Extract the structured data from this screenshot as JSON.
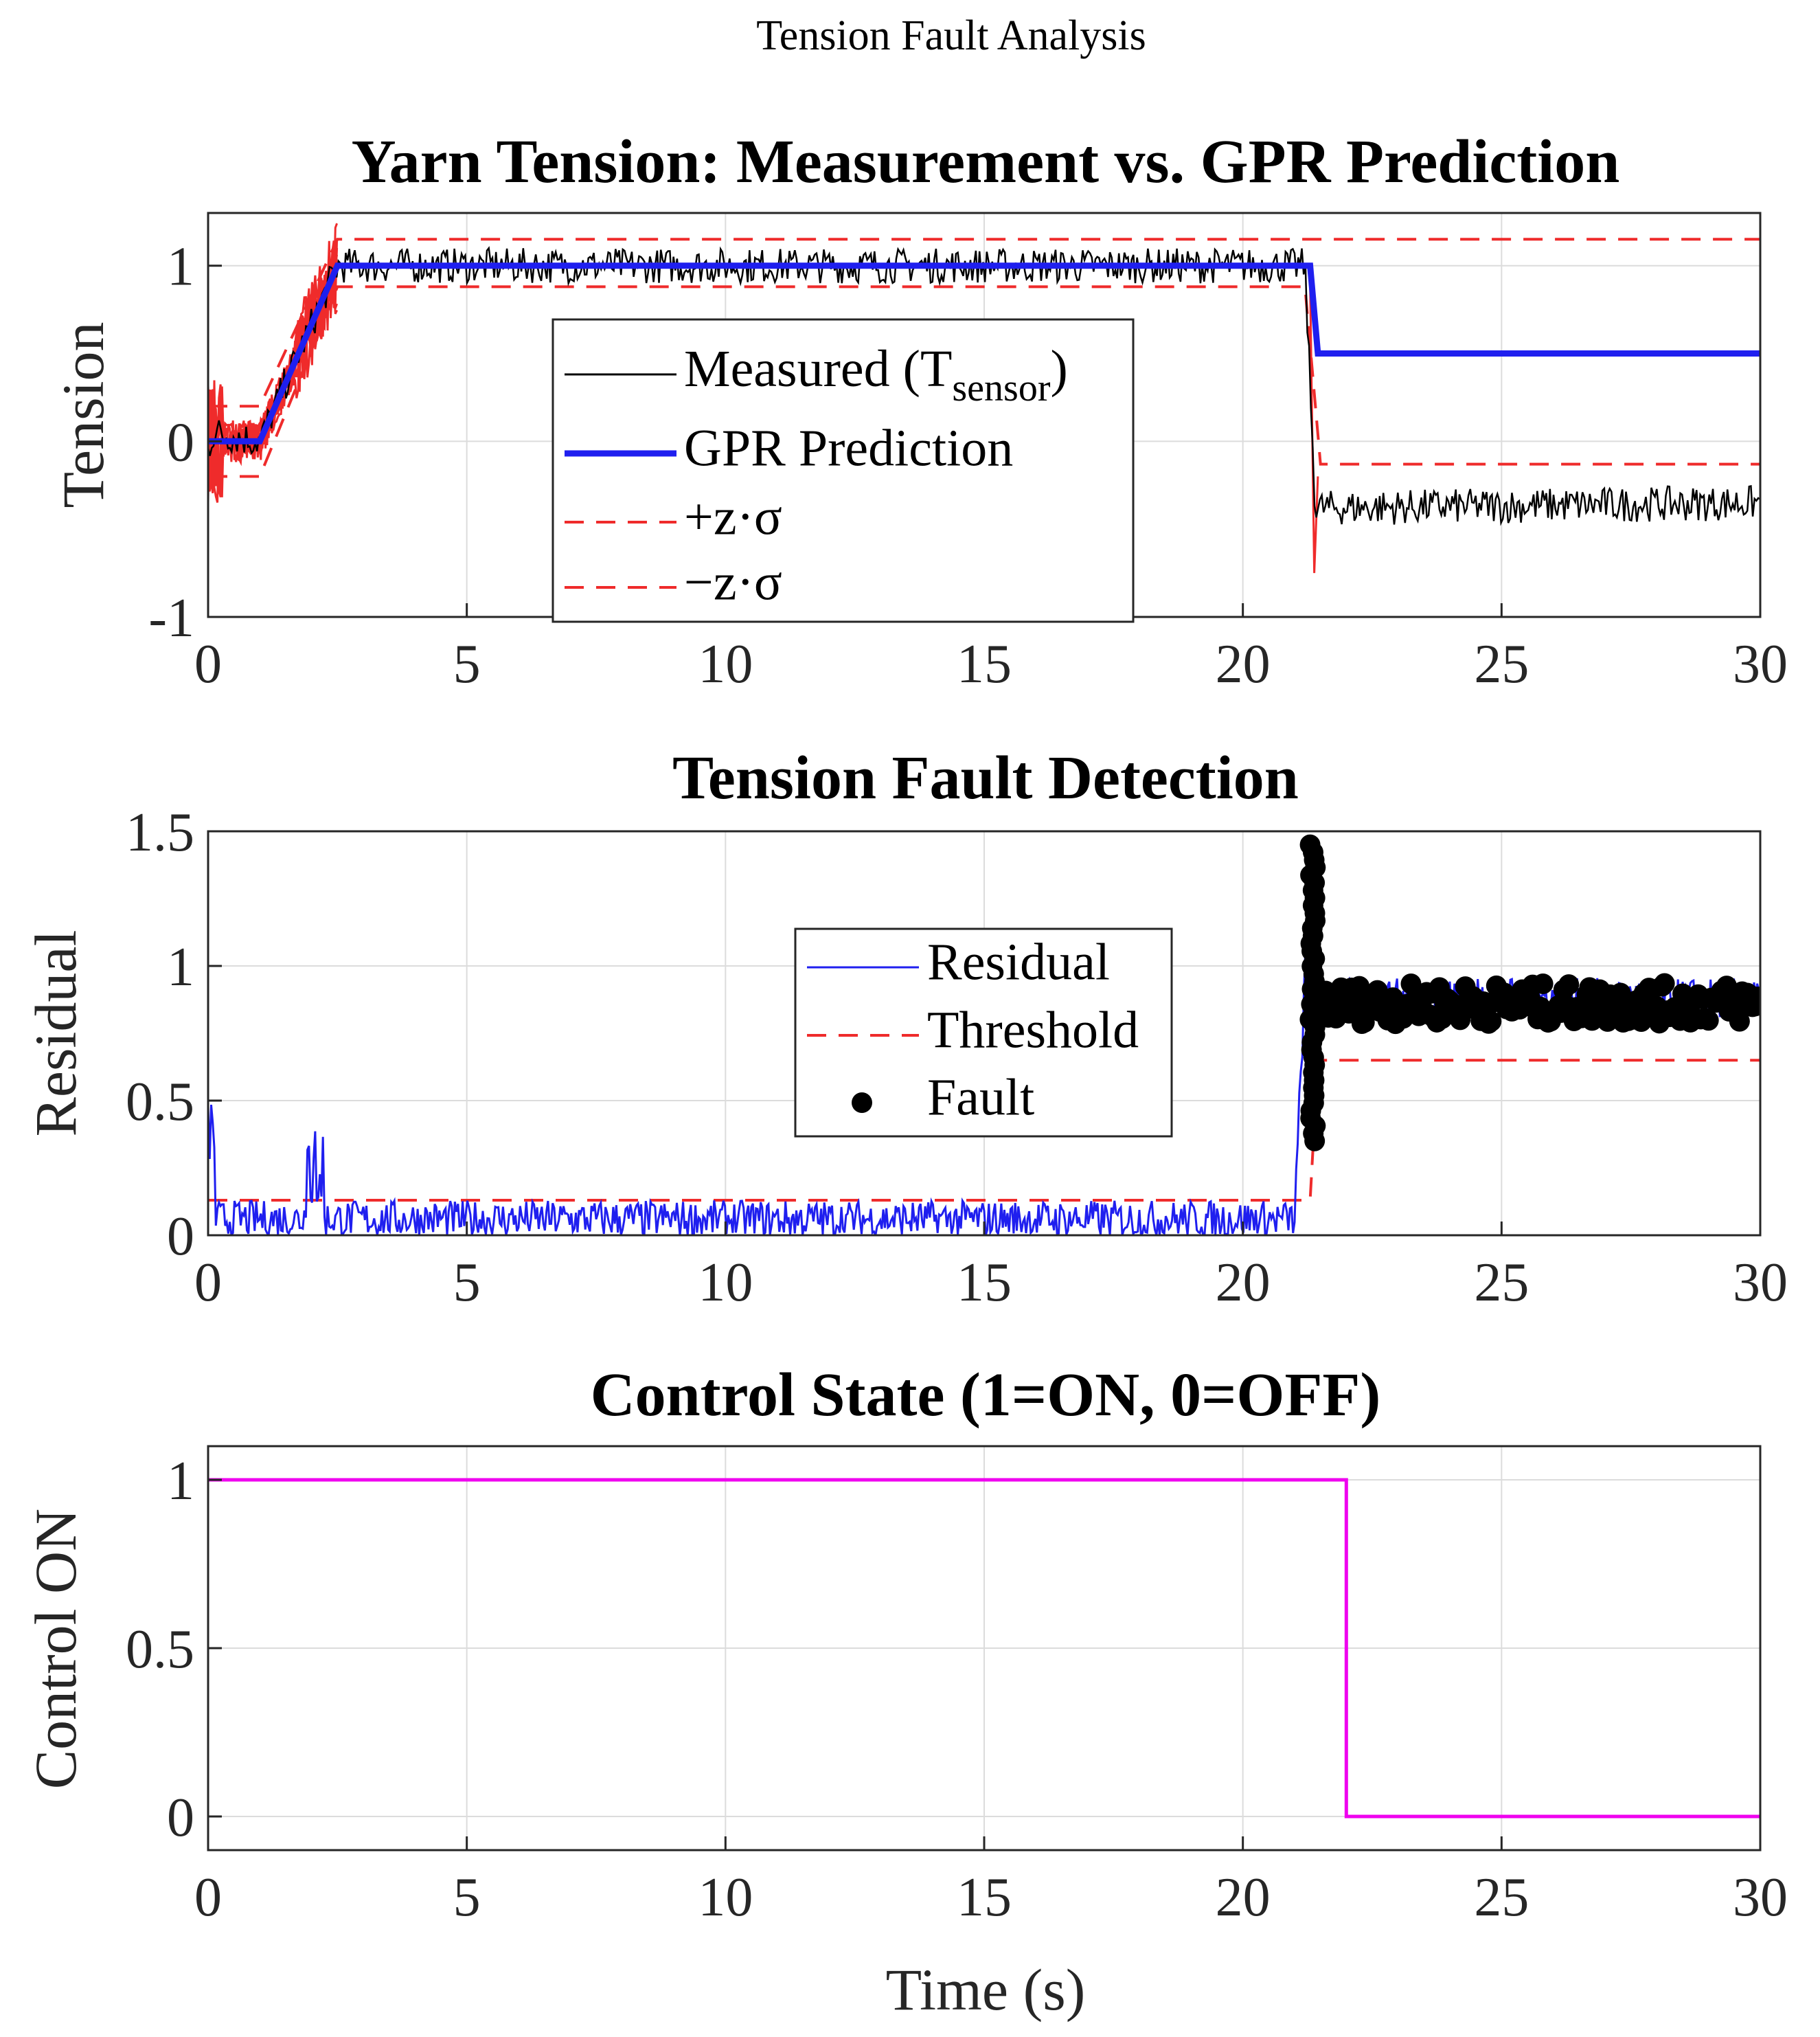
{
  "figure": {
    "suptitle": "Tension Fault Analysis"
  },
  "colors": {
    "measured": "#000000",
    "gpr": "#1f1fef",
    "band": "#ef2b2b",
    "residual": "#1f1fef",
    "threshold": "#ef2b2b",
    "fault": "#000000",
    "control": "#ef00ef"
  },
  "chart_data": [
    {
      "type": "line",
      "title": "Yarn Tension: Measurement vs. GPR Prediction",
      "xlabel": "",
      "ylabel": "Tension",
      "xlim": [
        0,
        30
      ],
      "ylim": [
        -1,
        1.3
      ],
      "xticks": [
        "0",
        "5",
        "10",
        "15",
        "20",
        "25",
        "30"
      ],
      "yticks": [
        "-1",
        "0",
        "1"
      ],
      "grid": true,
      "legend_position": "center",
      "legend": [
        {
          "label": "Measured (T",
          "sub": "sensor",
          "tail": ")"
        },
        {
          "label": "GPR Prediction"
        },
        {
          "label": "+z·σ"
        },
        {
          "label": "−z·σ"
        }
      ],
      "series": [
        {
          "name": "Measured (T_sensor)",
          "noise": 0.1,
          "x": [
            0,
            0.1,
            1,
            2.5,
            21.2,
            21.4,
            30
          ],
          "y": [
            -0.05,
            0.05,
            0.0,
            1.0,
            1.0,
            -0.38,
            -0.35
          ]
        },
        {
          "name": "GPR Prediction",
          "x": [
            0,
            1,
            2.5,
            21.3,
            21.45,
            30
          ],
          "y": [
            0,
            0,
            1.0,
            1.0,
            0.5,
            0.5
          ]
        },
        {
          "name": "+z·σ",
          "x": [
            0,
            1,
            2.5,
            21.2,
            21.5,
            30
          ],
          "y": [
            0.2,
            0.2,
            1.15,
            1.15,
            1.15,
            1.15
          ]
        },
        {
          "name": "−z·σ",
          "x": [
            0,
            1,
            2.5,
            21.2,
            21.5,
            30
          ],
          "y": [
            -0.2,
            -0.2,
            0.88,
            0.88,
            -0.13,
            -0.13
          ]
        }
      ]
    },
    {
      "type": "line",
      "title": "Tension Fault Detection",
      "xlabel": "",
      "ylabel": "Residual",
      "xlim": [
        0,
        30
      ],
      "ylim": [
        0,
        1.5
      ],
      "xticks": [
        "0",
        "5",
        "10",
        "15",
        "20",
        "25",
        "30"
      ],
      "yticks": [
        "0",
        "0.5",
        "1",
        "1.5"
      ],
      "grid": true,
      "legend_position": "center",
      "legend": [
        {
          "label": "Residual"
        },
        {
          "label": "Threshold"
        },
        {
          "label": "Fault"
        }
      ],
      "series": [
        {
          "name": "Residual",
          "x": [
            0,
            21.0,
            21.3,
            21.4,
            30
          ],
          "y": [
            0.06,
            0.06,
            1.4,
            0.88,
            0.88
          ],
          "noise": 0.05
        },
        {
          "name": "Threshold",
          "x": [
            0,
            21.3,
            21.45,
            30
          ],
          "y": [
            0.13,
            0.13,
            0.65,
            0.65
          ]
        },
        {
          "name": "Fault",
          "x_start": 21.35,
          "x_end": 30,
          "y_level": 0.86,
          "spike_range": [
            0.35,
            1.45
          ]
        }
      ]
    },
    {
      "type": "line",
      "title": "Control State (1=ON, 0=OFF)",
      "xlabel": "Time (s)",
      "ylabel": "Control ON",
      "xlim": [
        0,
        30
      ],
      "ylim": [
        -0.1,
        1.1
      ],
      "xticks": [
        "0",
        "5",
        "10",
        "15",
        "20",
        "25",
        "30"
      ],
      "yticks": [
        "0",
        "0.5",
        "1"
      ],
      "grid": true,
      "series": [
        {
          "name": "Control",
          "x": [
            0,
            22,
            22,
            30
          ],
          "y": [
            1,
            1,
            0,
            0
          ]
        }
      ]
    }
  ]
}
